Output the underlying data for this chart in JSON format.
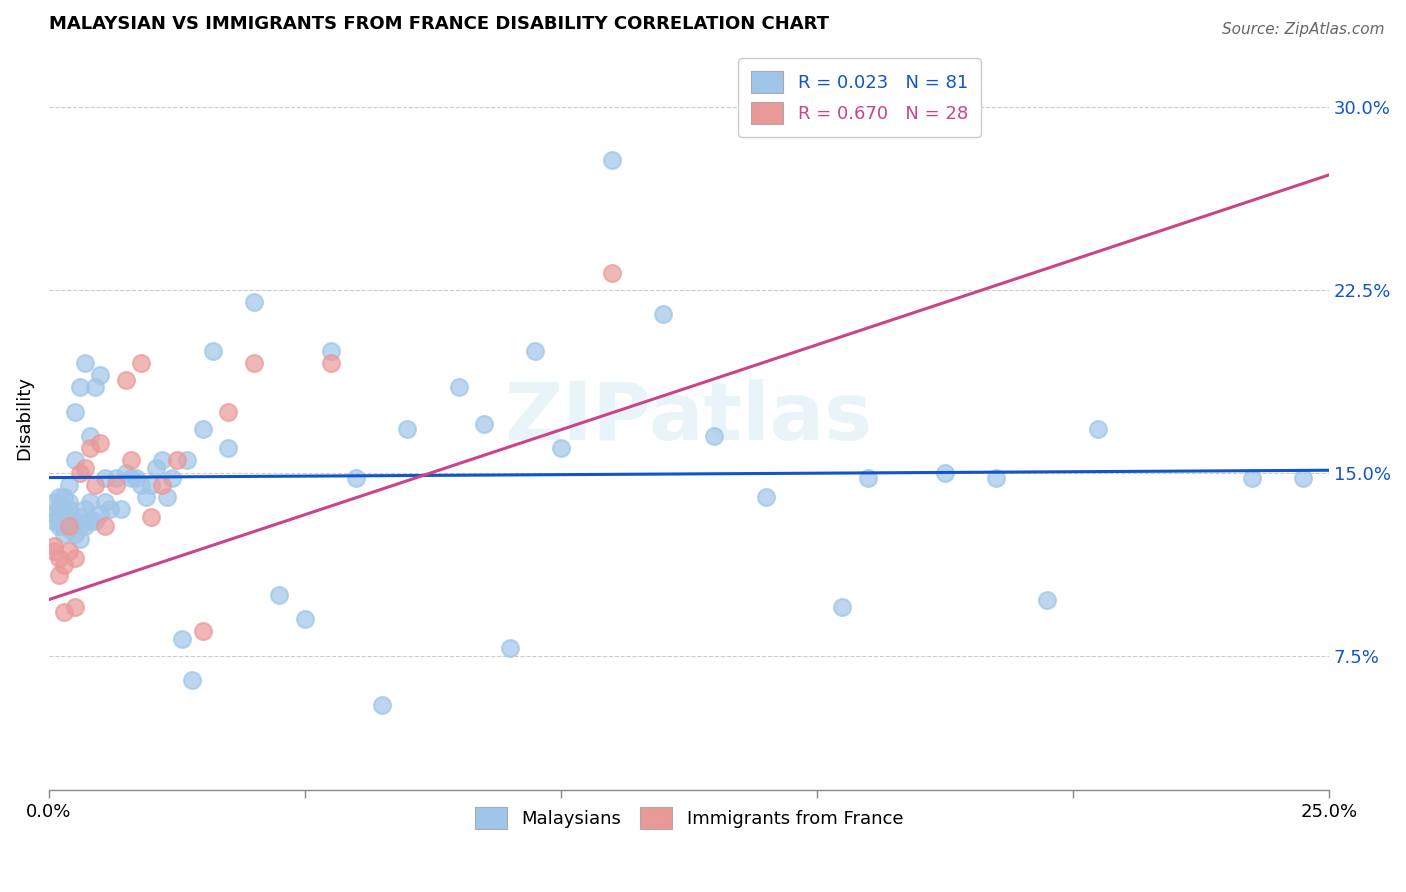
{
  "title": "MALAYSIAN VS IMMIGRANTS FROM FRANCE DISABILITY CORRELATION CHART",
  "source": "Source: ZipAtlas.com",
  "ylabel": "Disability",
  "xlim": [
    0.0,
    0.25
  ],
  "ylim": [
    0.02,
    0.325
  ],
  "xticks": [
    0.0,
    0.05,
    0.1,
    0.15,
    0.2,
    0.25
  ],
  "yticks": [
    0.075,
    0.15,
    0.225,
    0.3
  ],
  "ytick_labels": [
    "7.5%",
    "15.0%",
    "22.5%",
    "30.0%"
  ],
  "xtick_labels": [
    "0.0%",
    "",
    "",
    "",
    "",
    "25.0%"
  ],
  "legend_R1": "R = 0.023",
  "legend_N1": "N = 81",
  "legend_R2": "R = 0.670",
  "legend_N2": "N = 28",
  "legend_label1": "Malaysians",
  "legend_label2": "Immigrants from France",
  "blue_color": "#9fc5e8",
  "pink_color": "#ea9999",
  "blue_line_color": "#1155cc",
  "pink_line_color": "#cc4488",
  "watermark": "ZIPatlas",
  "blue_line_x": [
    0.0,
    0.25
  ],
  "blue_line_y": [
    0.148,
    0.151
  ],
  "pink_line_x": [
    0.0,
    0.25
  ],
  "pink_line_y": [
    0.098,
    0.272
  ],
  "blue_scatter_x": [
    0.001,
    0.001,
    0.001,
    0.002,
    0.002,
    0.002,
    0.002,
    0.002,
    0.003,
    0.003,
    0.003,
    0.003,
    0.003,
    0.004,
    0.004,
    0.004,
    0.004,
    0.004,
    0.005,
    0.005,
    0.005,
    0.005,
    0.006,
    0.006,
    0.006,
    0.006,
    0.007,
    0.007,
    0.007,
    0.008,
    0.008,
    0.008,
    0.009,
    0.009,
    0.01,
    0.01,
    0.011,
    0.011,
    0.012,
    0.013,
    0.014,
    0.015,
    0.016,
    0.017,
    0.018,
    0.019,
    0.02,
    0.021,
    0.022,
    0.023,
    0.024,
    0.026,
    0.027,
    0.028,
    0.03,
    0.032,
    0.035,
    0.04,
    0.045,
    0.05,
    0.055,
    0.06,
    0.065,
    0.07,
    0.08,
    0.085,
    0.09,
    0.095,
    0.1,
    0.11,
    0.12,
    0.13,
    0.14,
    0.155,
    0.16,
    0.175,
    0.185,
    0.195,
    0.205,
    0.235,
    0.245
  ],
  "blue_scatter_y": [
    0.13,
    0.133,
    0.138,
    0.128,
    0.13,
    0.133,
    0.136,
    0.14,
    0.125,
    0.128,
    0.132,
    0.135,
    0.14,
    0.127,
    0.13,
    0.135,
    0.138,
    0.145,
    0.125,
    0.13,
    0.155,
    0.175,
    0.123,
    0.128,
    0.132,
    0.185,
    0.128,
    0.135,
    0.195,
    0.13,
    0.138,
    0.165,
    0.13,
    0.185,
    0.133,
    0.19,
    0.138,
    0.148,
    0.135,
    0.148,
    0.135,
    0.15,
    0.148,
    0.148,
    0.145,
    0.14,
    0.145,
    0.152,
    0.155,
    0.14,
    0.148,
    0.082,
    0.155,
    0.065,
    0.168,
    0.2,
    0.16,
    0.22,
    0.1,
    0.09,
    0.2,
    0.148,
    0.055,
    0.168,
    0.185,
    0.17,
    0.078,
    0.2,
    0.16,
    0.278,
    0.215,
    0.165,
    0.14,
    0.095,
    0.148,
    0.15,
    0.148,
    0.098,
    0.168,
    0.148,
    0.148
  ],
  "pink_scatter_x": [
    0.001,
    0.001,
    0.002,
    0.002,
    0.003,
    0.003,
    0.004,
    0.004,
    0.005,
    0.005,
    0.006,
    0.007,
    0.008,
    0.009,
    0.01,
    0.011,
    0.013,
    0.015,
    0.016,
    0.018,
    0.02,
    0.022,
    0.025,
    0.03,
    0.035,
    0.04,
    0.055,
    0.11
  ],
  "pink_scatter_y": [
    0.118,
    0.12,
    0.108,
    0.115,
    0.093,
    0.112,
    0.118,
    0.128,
    0.115,
    0.095,
    0.15,
    0.152,
    0.16,
    0.145,
    0.162,
    0.128,
    0.145,
    0.188,
    0.155,
    0.195,
    0.132,
    0.145,
    0.155,
    0.085,
    0.175,
    0.195,
    0.195,
    0.232
  ]
}
